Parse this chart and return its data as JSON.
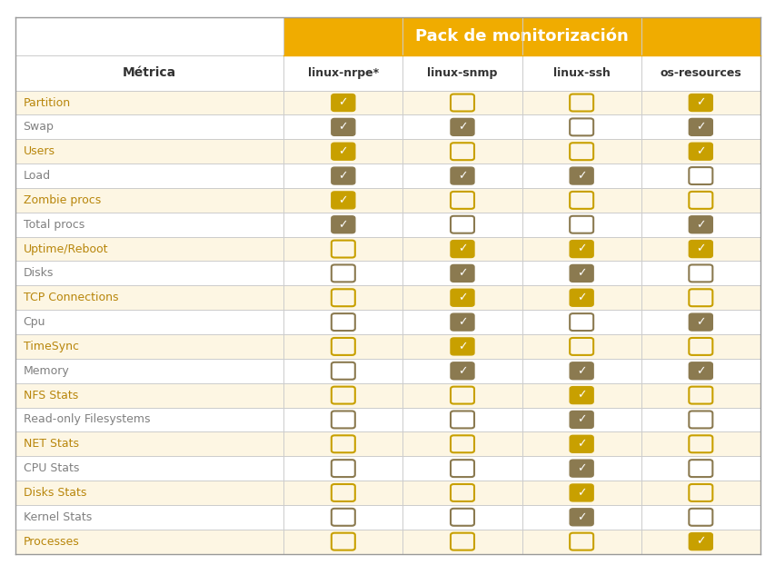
{
  "title": "Pack de monitorización",
  "col_header": "Métrica",
  "columns": [
    "linux-nrpe*",
    "linux-snmp",
    "linux-ssh",
    "os-resources"
  ],
  "metrics": [
    "Partition",
    "Swap",
    "Users",
    "Load",
    "Zombie procs",
    "Total procs",
    "Uptime/Reboot",
    "Disks",
    "TCP Connections",
    "Cpu",
    "TimeSync",
    "Memory",
    "NFS Stats",
    "Read-only Filesystems",
    "NET Stats",
    "CPU Stats",
    "Disks Stats",
    "Kernel Stats",
    "Processes"
  ],
  "data": [
    [
      1,
      0,
      0,
      1
    ],
    [
      1,
      1,
      0,
      1
    ],
    [
      1,
      0,
      0,
      1
    ],
    [
      1,
      1,
      1,
      0
    ],
    [
      1,
      0,
      0,
      0
    ],
    [
      1,
      0,
      0,
      1
    ],
    [
      0,
      1,
      1,
      1
    ],
    [
      0,
      1,
      1,
      0
    ],
    [
      0,
      1,
      1,
      0
    ],
    [
      0,
      1,
      0,
      1
    ],
    [
      0,
      1,
      0,
      0
    ],
    [
      0,
      1,
      1,
      1
    ],
    [
      0,
      0,
      1,
      0
    ],
    [
      0,
      0,
      1,
      0
    ],
    [
      0,
      0,
      1,
      0
    ],
    [
      0,
      0,
      1,
      0
    ],
    [
      0,
      0,
      1,
      0
    ],
    [
      0,
      0,
      1,
      0
    ],
    [
      0,
      0,
      0,
      1
    ]
  ],
  "colors": {
    "header_bg": "#F0AC00",
    "header_text": "#FFFFFF",
    "subheader_bg": "#FFFFFF",
    "subheader_text": "#333333",
    "row_odd_bg": "#FDF6E3",
    "row_even_bg": "#FFFFFF",
    "metric_text_odd": "#B8860B",
    "metric_text_even": "#808080",
    "check_filled_odd": "#C8A000",
    "check_filled_even": "#8B7A50",
    "check_empty_odd": "#C8A000",
    "check_empty_even": "#8B7A50",
    "check_mark_color": "#FFFFFF",
    "grid_color": "#CCCCCC",
    "border_color": "#999999",
    "col_header_text": "#333333",
    "fig_bg": "#FFFFFF"
  },
  "figsize": [
    8.54,
    6.22
  ],
  "dpi": 100
}
